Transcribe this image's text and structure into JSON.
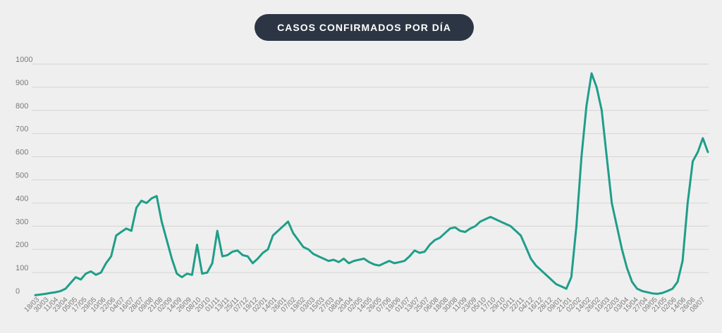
{
  "chart_data": {
    "type": "line",
    "title": "CASOS CONFIRMADOS POR DÍA",
    "xlabel": "",
    "ylabel": "",
    "ylim": [
      0,
      1000
    ],
    "yticks": [
      0,
      100,
      200,
      300,
      400,
      500,
      600,
      700,
      800,
      900,
      1000
    ],
    "grid": true,
    "colors": {
      "line": "#1f9e89",
      "title_bg": "#2c3543",
      "background": "#efefef"
    },
    "x_labels": [
      "18/03",
      "30/03",
      "11/04",
      "23/04",
      "05/05",
      "17/05",
      "29/05",
      "10/06",
      "22/06",
      "04/07",
      "16/07",
      "28/07",
      "09/08",
      "21/08",
      "02/09",
      "14/09",
      "26/09",
      "08/10",
      "20/10",
      "01/11",
      "13/11",
      "25/11",
      "07/12",
      "19/12",
      "02/01",
      "14/01",
      "26/01",
      "07/02",
      "19/02",
      "03/03",
      "15/03",
      "27/03",
      "08/04",
      "20/04",
      "02/05",
      "14/05",
      "26/05",
      "07/06",
      "19/06",
      "01/07",
      "13/07",
      "25/07",
      "06/08",
      "18/08",
      "30/08",
      "11/09",
      "23/09",
      "05/10",
      "17/10",
      "29/10",
      "10/11",
      "22/11",
      "04/12",
      "16/12",
      "28/12",
      "09/01",
      "21/01",
      "02/02",
      "14/02",
      "26/02",
      "10/03",
      "22/03",
      "03/04",
      "15/04",
      "27/04",
      "09/05",
      "21/05",
      "02/06",
      "14/06",
      "26/06",
      "08/07"
    ],
    "series": [
      {
        "values": [
          2,
          5,
          8,
          12,
          15,
          20,
          30,
          55,
          80,
          70,
          95,
          105,
          90,
          100,
          140,
          170,
          260,
          275,
          290,
          280,
          380,
          410,
          400,
          420,
          430,
          320,
          240,
          160,
          95,
          80,
          95,
          90,
          220,
          95,
          100,
          140,
          280,
          170,
          175,
          190,
          195,
          175,
          170,
          140,
          160,
          185,
          200,
          260,
          280,
          300,
          320,
          270,
          240,
          210,
          200,
          180,
          170,
          160,
          150,
          155,
          145,
          160,
          140,
          150,
          155,
          160,
          145,
          135,
          130,
          140,
          150,
          140,
          145,
          150,
          170,
          195,
          185,
          190,
          220,
          240,
          250,
          270,
          290,
          295,
          280,
          275,
          290,
          300,
          320,
          330,
          340,
          330,
          320,
          310,
          300,
          280,
          260,
          210,
          160,
          130,
          110,
          90,
          70,
          50,
          40,
          30,
          80,
          300,
          600,
          820,
          960,
          900,
          800,
          600,
          400,
          300,
          200,
          120,
          60,
          30,
          20,
          15,
          10,
          8,
          12,
          20,
          30,
          60,
          150,
          400,
          580,
          620,
          680,
          620
        ]
      }
    ]
  }
}
